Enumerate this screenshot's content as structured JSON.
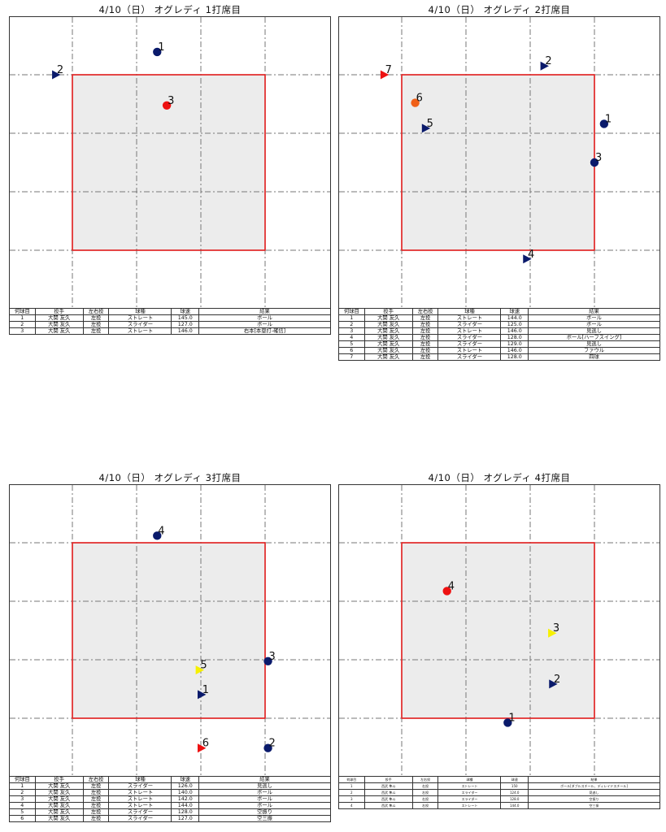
{
  "colors": {
    "straight": "#0a1a6b",
    "slider": "#0a1a6b",
    "highlight_red": "#ee1111",
    "highlight_orange": "#f06018",
    "highlight_yellow": "#f6f000",
    "zone_fill": "#ececec",
    "zone_border": "#e02020",
    "grid": "#777777"
  },
  "headers": [
    "何球目",
    "投手",
    "左右投",
    "球種",
    "球速",
    "結果"
  ],
  "panels": [
    {
      "title": "4/10（日） オグレディ 1打席目",
      "font": "normal",
      "pitches": [
        {
          "num": "1",
          "pitcher": "大関 友久",
          "hand": "左投",
          "type": "ストレート",
          "speed": "145.0",
          "result": "ボール",
          "x": -0.12,
          "y": 1.26,
          "marker": "circle",
          "color": "#0a1a6b"
        },
        {
          "num": "2",
          "pitcher": "大関 友久",
          "hand": "左投",
          "type": "スライダー",
          "speed": "127.0",
          "result": "ボール",
          "x": -1.17,
          "y": 1.0,
          "marker": "triangle",
          "color": "#0a1a6b"
        },
        {
          "num": "3",
          "pitcher": "大関 友久",
          "hand": "左投",
          "type": "ストレート",
          "speed": "146.0",
          "result": "右本[本塁打-確信]",
          "x": -0.02,
          "y": 0.65,
          "marker": "circle",
          "color": "#ee1111"
        }
      ]
    },
    {
      "title": "4/10（日） オグレディ 2打席目",
      "font": "normal",
      "pitches": [
        {
          "num": "1",
          "pitcher": "大関 友久",
          "hand": "左投",
          "type": "ストレート",
          "speed": "144.0",
          "result": "ボール",
          "x": 1.1,
          "y": 0.44,
          "marker": "circle",
          "color": "#0a1a6b"
        },
        {
          "num": "2",
          "pitcher": "大関 友久",
          "hand": "左投",
          "type": "スライダー",
          "speed": "125.0",
          "result": "ボール",
          "x": 0.48,
          "y": 1.1,
          "marker": "triangle",
          "color": "#0a1a6b"
        },
        {
          "num": "3",
          "pitcher": "大関 友久",
          "hand": "左投",
          "type": "ストレート",
          "speed": "146.0",
          "result": "見逃し",
          "x": 1.0,
          "y": 0.0,
          "marker": "circle",
          "color": "#0a1a6b"
        },
        {
          "num": "4",
          "pitcher": "大関 友久",
          "hand": "左投",
          "type": "スライダー",
          "speed": "128.0",
          "result": "ボール[ハーフスイング]",
          "x": 0.3,
          "y": -1.1,
          "marker": "triangle",
          "color": "#0a1a6b"
        },
        {
          "num": "5",
          "pitcher": "大関 友久",
          "hand": "左投",
          "type": "スライダー",
          "speed": "129.0",
          "result": "見逃し",
          "x": -0.75,
          "y": 0.39,
          "marker": "triangle",
          "color": "#0a1a6b"
        },
        {
          "num": "6",
          "pitcher": "大関 友久",
          "hand": "左投",
          "type": "ストレート",
          "speed": "146.0",
          "result": "ファウル",
          "x": -0.86,
          "y": 0.68,
          "marker": "circle",
          "color": "#f06018"
        },
        {
          "num": "7",
          "pitcher": "大関 友久",
          "hand": "左投",
          "type": "スライダー",
          "speed": "128.0",
          "result": "四球",
          "x": -1.18,
          "y": 1.0,
          "marker": "triangle",
          "color": "#ee1111"
        }
      ]
    },
    {
      "title": "4/10（日） オグレディ 3打席目",
      "font": "normal",
      "pitches": [
        {
          "num": "1",
          "pitcher": "大関 友久",
          "hand": "左投",
          "type": "スライダー",
          "speed": "126.0",
          "result": "見逃し",
          "x": 0.34,
          "y": -0.73,
          "marker": "triangle",
          "color": "#0a1a6b"
        },
        {
          "num": "2",
          "pitcher": "大関 友久",
          "hand": "左投",
          "type": "ストレート",
          "speed": "140.0",
          "result": "ボール",
          "x": 1.03,
          "y": -1.34,
          "marker": "circle",
          "color": "#0a1a6b"
        },
        {
          "num": "3",
          "pitcher": "大関 友久",
          "hand": "左投",
          "type": "ストレート",
          "speed": "142.0",
          "result": "ボール",
          "x": 1.03,
          "y": -0.35,
          "marker": "circle",
          "color": "#0a1a6b"
        },
        {
          "num": "4",
          "pitcher": "大関 友久",
          "hand": "左投",
          "type": "ストレート",
          "speed": "144.0",
          "result": "ボール",
          "x": -0.12,
          "y": 1.08,
          "marker": "circle",
          "color": "#0a1a6b"
        },
        {
          "num": "5",
          "pitcher": "大関 友久",
          "hand": "左投",
          "type": "スライダー",
          "speed": "128.0",
          "result": "空振り",
          "x": 0.32,
          "y": -0.45,
          "marker": "triangle",
          "color": "#f6f000"
        },
        {
          "num": "6",
          "pitcher": "大関 友久",
          "hand": "左投",
          "type": "スライダー",
          "speed": "127.0",
          "result": "空三振",
          "x": 0.34,
          "y": -1.34,
          "marker": "triangle",
          "color": "#ee1111"
        }
      ]
    },
    {
      "title": "4/10（日） オグレディ 4打席目",
      "font": "small",
      "pitches": [
        {
          "num": "1",
          "pitcher": "西武 隼斗",
          "hand": "右投",
          "type": "ストレート",
          "speed": "150",
          "result": "ボール[ダブルスチール、ディレイドスチール]",
          "x": 0.1,
          "y": -1.05,
          "marker": "circle",
          "color": "#0a1a6b"
        },
        {
          "num": "2",
          "pitcher": "西武 隼斗",
          "hand": "右投",
          "type": "スライダー",
          "speed": "124.0",
          "result": "見逃し",
          "x": 0.57,
          "y": -0.61,
          "marker": "triangle",
          "color": "#0a1a6b"
        },
        {
          "num": "3",
          "pitcher": "西武 隼斗",
          "hand": "右投",
          "type": "スライダー",
          "speed": "128.0",
          "result": "空振り",
          "x": 0.56,
          "y": -0.03,
          "marker": "triangle",
          "color": "#f6f000"
        },
        {
          "num": "4",
          "pitcher": "西武 隼斗",
          "hand": "右投",
          "type": "ストレート",
          "speed": "144.0",
          "result": "空三振",
          "x": -0.53,
          "y": 0.45,
          "marker": "circle",
          "color": "#ee1111"
        }
      ]
    }
  ]
}
